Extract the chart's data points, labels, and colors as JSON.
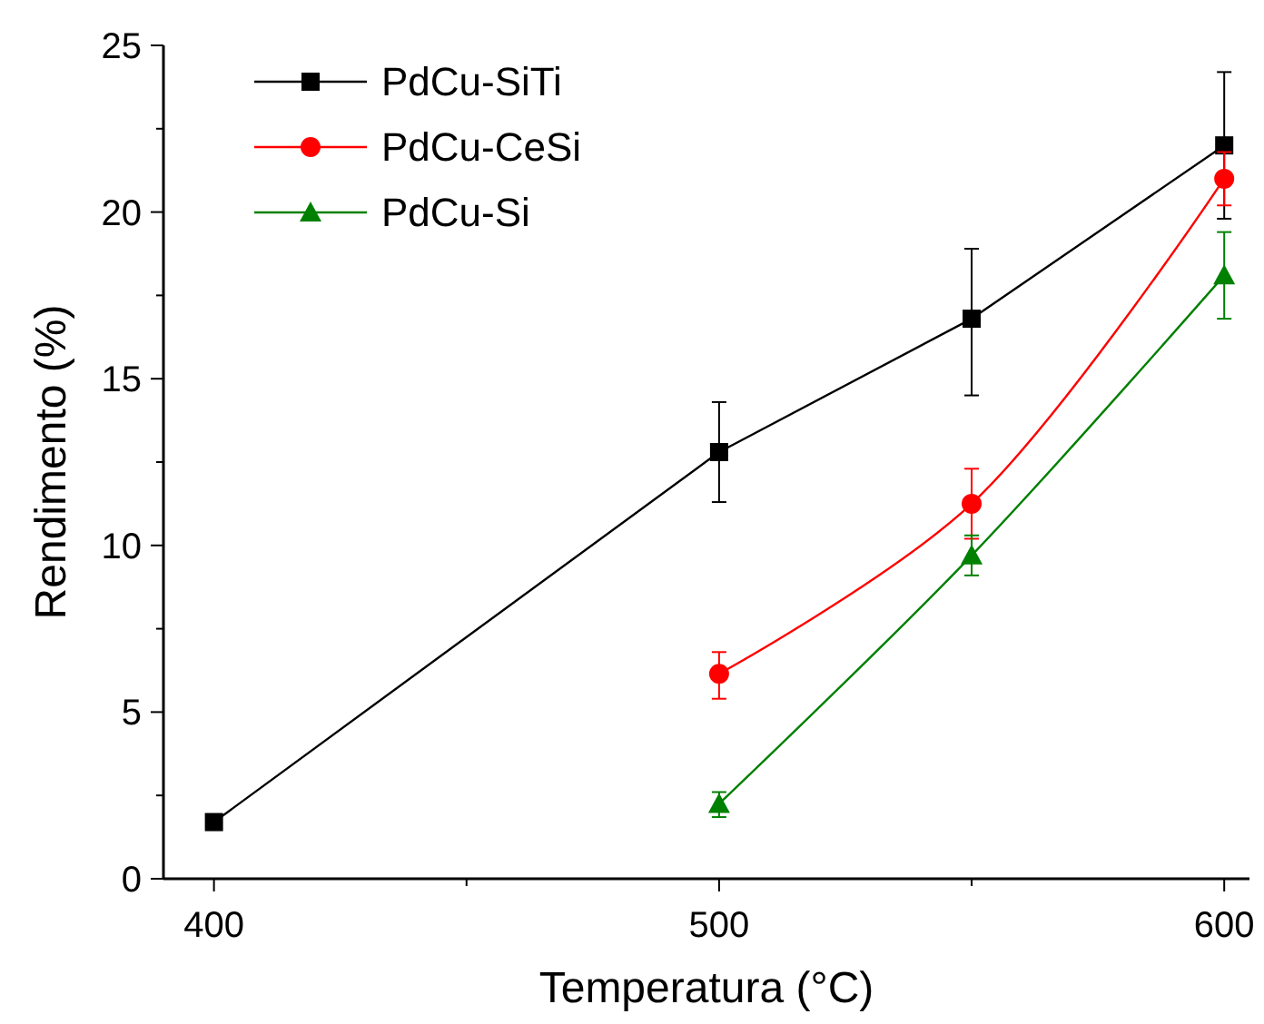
{
  "chart_data": {
    "type": "line",
    "xlabel": "Temperatura (°C)",
    "ylabel": "Rendimento (%)",
    "xlim": [
      390,
      605
    ],
    "ylim": [
      0,
      25
    ],
    "xticks": [
      400,
      {
        "value": 450,
        "label": null
      },
      500,
      {
        "value": 550,
        "label": null
      },
      600
    ],
    "yticks": [
      0,
      {
        "value": 2.5,
        "label": null
      },
      5,
      {
        "value": 7.5,
        "label": null
      },
      10,
      {
        "value": 12.5,
        "label": null
      },
      15,
      {
        "value": 17.5,
        "label": null
      },
      20,
      {
        "value": 22.5,
        "label": null
      },
      25
    ],
    "grid": false,
    "legend": "top left",
    "series": [
      {
        "name": "PdCu-SiTi",
        "color": "#000000",
        "marker": "square",
        "x": [
          400,
          500,
          550,
          600
        ],
        "values": [
          1.7,
          12.8,
          16.8,
          22.0
        ],
        "errors": [
          0.1,
          [
            11.3,
            14.3
          ],
          [
            14.5,
            18.9
          ],
          [
            19.8,
            24.2
          ]
        ]
      },
      {
        "name": "PdCu-CeSi",
        "color": "#ff0000",
        "marker": "circle",
        "x": [
          500,
          550,
          600
        ],
        "values": [
          6.15,
          11.25,
          21.0
        ],
        "errors": [
          [
            5.4,
            6.8
          ],
          [
            10.2,
            12.3
          ],
          [
            20.2,
            21.8
          ]
        ]
      },
      {
        "name": "PdCu-Si",
        "color": "#008000",
        "marker": "triangle",
        "x": [
          500,
          550,
          600
        ],
        "values": [
          2.25,
          9.7,
          18.1
        ],
        "errors": [
          [
            1.85,
            2.6
          ],
          [
            9.1,
            10.3
          ],
          [
            16.8,
            19.4
          ]
        ]
      }
    ]
  }
}
